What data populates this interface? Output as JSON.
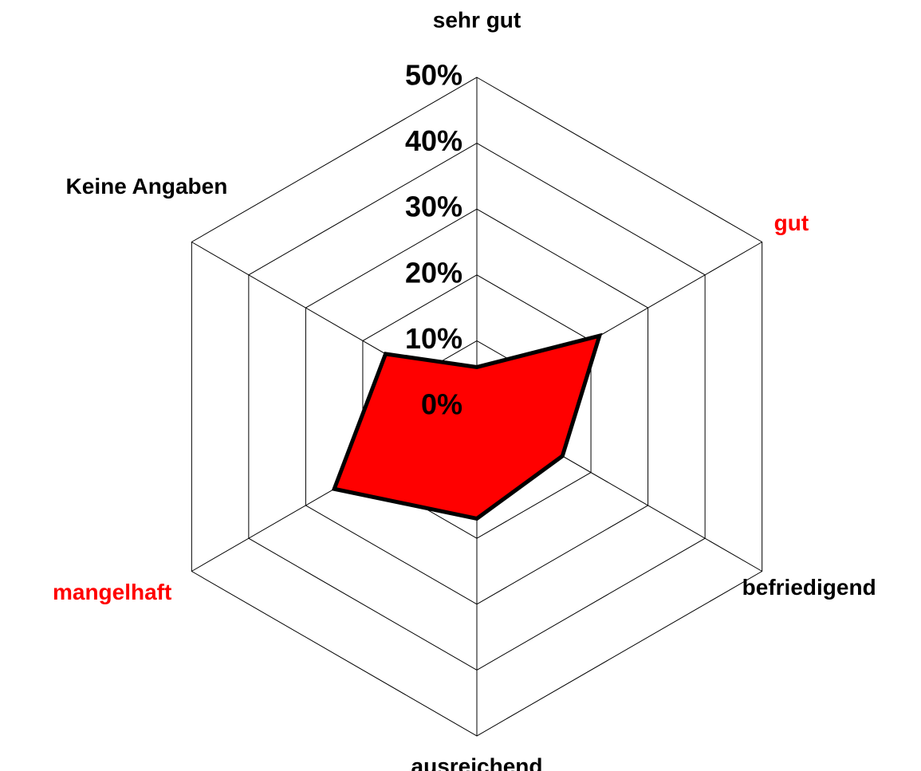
{
  "chart_data": {
    "type": "radar",
    "categories": [
      "sehr gut",
      "gut",
      "befriedigend",
      "ausreichend",
      "mangelhaft",
      "Keine Angaben"
    ],
    "category_colors": [
      "#000000",
      "#ff0000",
      "#000000",
      "#000000",
      "#ff0000",
      "#000000"
    ],
    "series": [
      {
        "name": null,
        "color": "#ff0000",
        "values": [
          6,
          21.5,
          15,
          17,
          25,
          16
        ]
      }
    ],
    "ylim": [
      0,
      50
    ],
    "yticks": [
      {
        "value": 0,
        "label": "0%"
      },
      {
        "value": 10,
        "label": "10%"
      },
      {
        "value": 20,
        "label": "20%"
      },
      {
        "value": 30,
        "label": "30%"
      },
      {
        "value": 40,
        "label": "40%"
      },
      {
        "value": 50,
        "label": "50%"
      }
    ],
    "grid": true
  }
}
